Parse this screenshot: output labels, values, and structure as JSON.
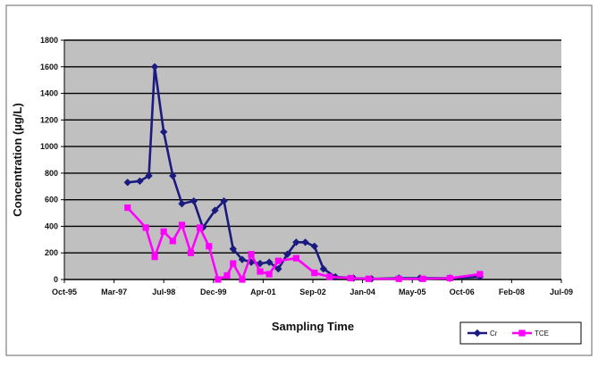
{
  "chart_data": {
    "type": "line",
    "title": "",
    "xlabel": "Sampling Time",
    "ylabel": "Concentration (µg/L)",
    "x_ticks": [
      "Oct-95",
      "Mar-97",
      "Jul-98",
      "Dec-99",
      "Apr-01",
      "Sep-02",
      "Jan-04",
      "May-05",
      "Oct-06",
      "Feb-08",
      "Jul-09"
    ],
    "xlim": [
      "1995-10-01",
      "2009-07-01"
    ],
    "y_ticks": [
      0,
      200,
      400,
      600,
      800,
      1000,
      1200,
      1400,
      1600,
      1800
    ],
    "ylim": [
      0,
      1800
    ],
    "grid": "horizontal",
    "legend_position": "bottom-right",
    "series": [
      {
        "name": "Cr",
        "color": "#1a1a80",
        "marker": "diamond",
        "points": [
          [
            "1997-07-01",
            730
          ],
          [
            "1997-11-01",
            740
          ],
          [
            "1998-02-01",
            780
          ],
          [
            "1998-04-01",
            1600
          ],
          [
            "1998-07-01",
            1110
          ],
          [
            "1998-10-01",
            780
          ],
          [
            "1999-01-01",
            570
          ],
          [
            "1999-05-01",
            590
          ],
          [
            "1999-08-01",
            390
          ],
          [
            "1999-12-01",
            520
          ],
          [
            "2000-03-01",
            590
          ],
          [
            "2000-06-01",
            230
          ],
          [
            "2000-09-01",
            150
          ],
          [
            "2000-12-01",
            130
          ],
          [
            "2001-03-01",
            120
          ],
          [
            "2001-06-01",
            130
          ],
          [
            "2001-09-01",
            80
          ],
          [
            "2001-12-01",
            190
          ],
          [
            "2002-03-01",
            280
          ],
          [
            "2002-06-01",
            280
          ],
          [
            "2002-09-01",
            250
          ],
          [
            "2002-12-01",
            80
          ],
          [
            "2003-04-01",
            20
          ],
          [
            "2003-10-01",
            10
          ],
          [
            "2004-04-01",
            5
          ],
          [
            "2005-01-01",
            10
          ],
          [
            "2005-08-01",
            10
          ],
          [
            "2006-06-01",
            10
          ],
          [
            "2007-04-01",
            20
          ]
        ]
      },
      {
        "name": "TCE",
        "color": "#ff00ff",
        "marker": "square",
        "points": [
          [
            "1997-07-01",
            540
          ],
          [
            "1998-01-01",
            390
          ],
          [
            "1998-04-01",
            170
          ],
          [
            "1998-07-01",
            360
          ],
          [
            "1998-10-01",
            290
          ],
          [
            "1999-01-01",
            410
          ],
          [
            "1999-04-01",
            200
          ],
          [
            "1999-07-01",
            390
          ],
          [
            "1999-10-01",
            250
          ],
          [
            "2000-01-01",
            0
          ],
          [
            "2000-04-01",
            30
          ],
          [
            "2000-06-01",
            120
          ],
          [
            "2000-09-01",
            0
          ],
          [
            "2000-12-01",
            190
          ],
          [
            "2001-03-01",
            60
          ],
          [
            "2001-06-01",
            40
          ],
          [
            "2001-09-01",
            140
          ],
          [
            "2002-03-01",
            160
          ],
          [
            "2002-09-01",
            50
          ],
          [
            "2003-02-01",
            20
          ],
          [
            "2003-09-01",
            10
          ],
          [
            "2004-03-01",
            5
          ],
          [
            "2005-01-01",
            5
          ],
          [
            "2005-09-01",
            5
          ],
          [
            "2006-06-01",
            10
          ],
          [
            "2007-04-01",
            40
          ]
        ]
      }
    ]
  }
}
